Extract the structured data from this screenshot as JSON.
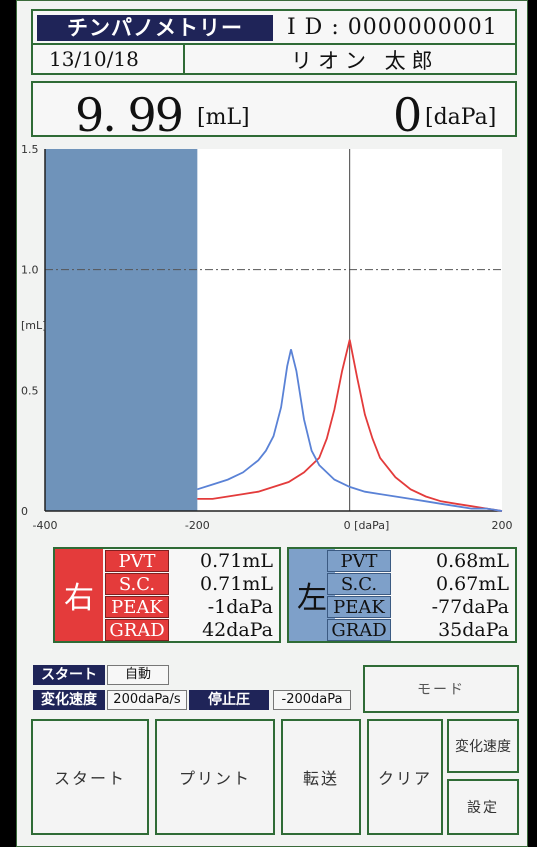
{
  "header": {
    "title": "チンパノメトリー",
    "id_text": "I D : 0000000001",
    "date": "13/10/18",
    "patient_name": "リオン 太郎"
  },
  "readout": {
    "volume_value": "9. 99",
    "volume_unit": "[mL]",
    "pressure_value": "0",
    "pressure_unit": "[daPa]"
  },
  "chart_data": {
    "type": "line",
    "x_ticks": [
      "-400",
      "-200",
      "0 [daPa]",
      "200"
    ],
    "y_ticks": [
      "1.5",
      "1.0",
      "0.5",
      "0"
    ],
    "ylabel": "[mL]",
    "xlim": [
      -400,
      200
    ],
    "ylim": [
      0,
      1.5
    ],
    "shaded_range": [
      -400,
      -200
    ],
    "reference_line_y": 1.0,
    "series": [
      {
        "color": "#e33b3b",
        "x": [
          -200,
          -180,
          -160,
          -140,
          -120,
          -100,
          -80,
          -60,
          -40,
          -30,
          -20,
          -10,
          0,
          10,
          20,
          30,
          40,
          60,
          80,
          100,
          120,
          140,
          160,
          180,
          200
        ],
        "y": [
          0.05,
          0.05,
          0.06,
          0.07,
          0.08,
          0.1,
          0.12,
          0.16,
          0.22,
          0.3,
          0.42,
          0.58,
          0.71,
          0.55,
          0.4,
          0.3,
          0.22,
          0.14,
          0.09,
          0.06,
          0.04,
          0.03,
          0.02,
          0.01,
          0.0
        ]
      },
      {
        "color": "#5a82d6",
        "x": [
          -200,
          -180,
          -160,
          -140,
          -120,
          -110,
          -100,
          -90,
          -82,
          -77,
          -70,
          -60,
          -50,
          -40,
          -20,
          0,
          20,
          40,
          60,
          80,
          100,
          120,
          140,
          160,
          180,
          200
        ],
        "y": [
          0.09,
          0.11,
          0.13,
          0.16,
          0.21,
          0.25,
          0.31,
          0.43,
          0.6,
          0.67,
          0.58,
          0.38,
          0.25,
          0.19,
          0.13,
          0.1,
          0.08,
          0.07,
          0.06,
          0.05,
          0.04,
          0.03,
          0.02,
          0.01,
          0.01,
          0.0
        ]
      }
    ]
  },
  "results": {
    "right": {
      "side_label": "右",
      "color": "#e43b3b",
      "rows": [
        {
          "label": "PVT",
          "value": "0.71mL"
        },
        {
          "label": "S.C.",
          "value": "0.71mL"
        },
        {
          "label": "PEAK",
          "value": "-1daPa"
        },
        {
          "label": "GRAD",
          "value": "42daPa"
        }
      ]
    },
    "left": {
      "side_label": "左",
      "color": "#7ea0c9",
      "rows": [
        {
          "label": "PVT",
          "value": "0.68mL"
        },
        {
          "label": "S.C.",
          "value": "0.67mL"
        },
        {
          "label": "PEAK",
          "value": "-77daPa"
        },
        {
          "label": "GRAD",
          "value": "35daPa"
        }
      ]
    }
  },
  "status": {
    "start_label": "スタート",
    "start_value": "自動",
    "rate_label": "変化速度",
    "rate_value": "200daPa/s",
    "stop_label": "停止圧",
    "stop_value": "-200daPa",
    "mode_button": "モード"
  },
  "buttons": {
    "start": "スタート",
    "print": "プリント",
    "transfer": "転送",
    "clear": "クリア",
    "rate": "変化速度",
    "settings": "設定"
  }
}
